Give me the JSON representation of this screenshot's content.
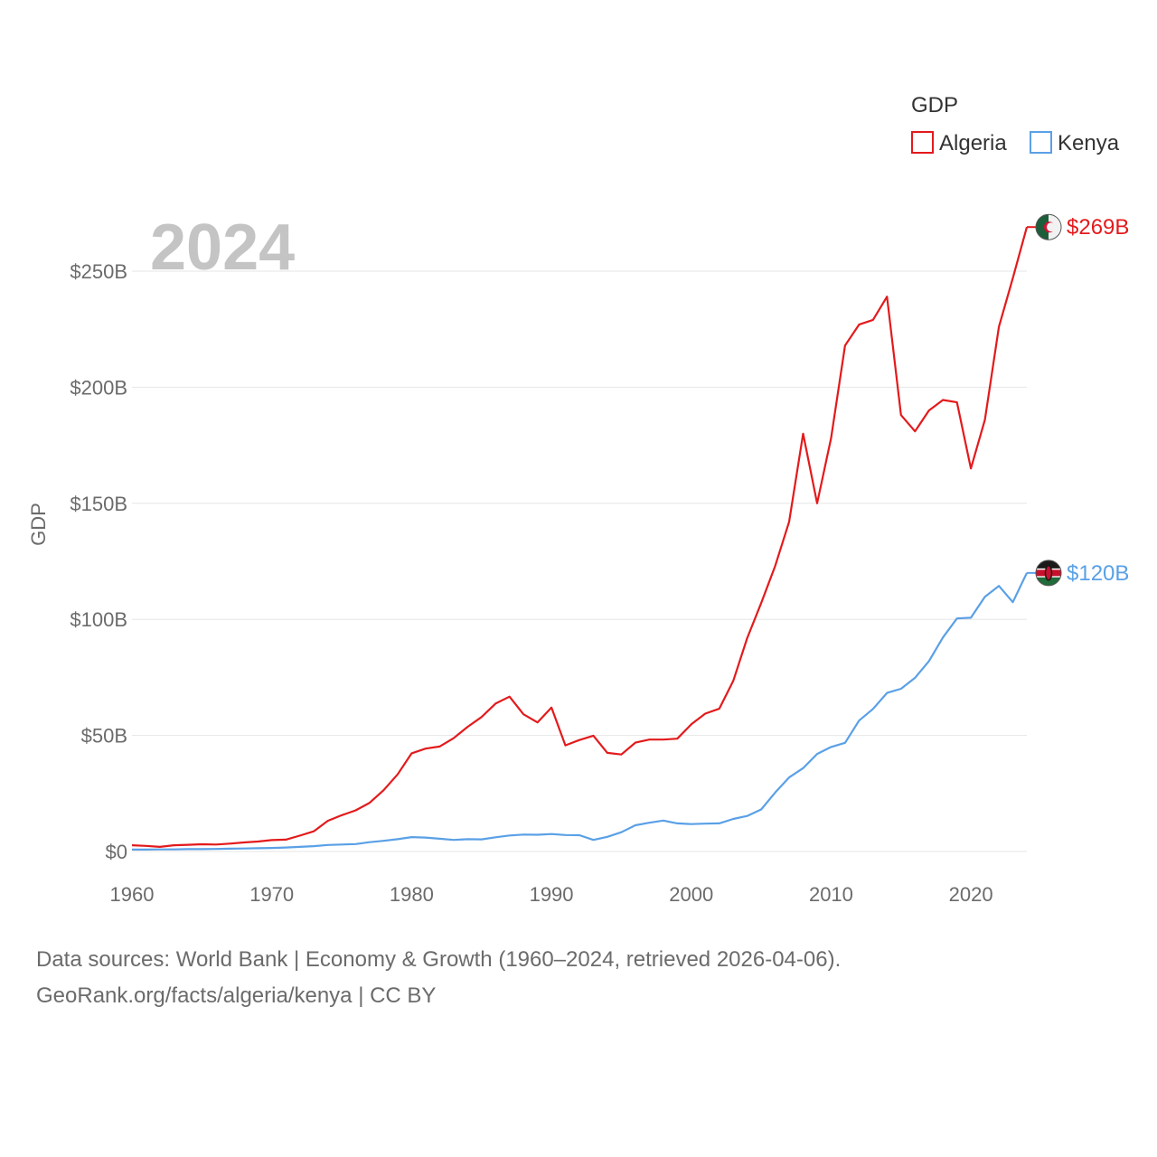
{
  "chart_data": {
    "type": "line",
    "ylabel": "GDP",
    "ylim": [
      0,
      270
    ],
    "y_ticks": [
      {
        "value": 0,
        "label": "$0"
      },
      {
        "value": 50,
        "label": "$50B"
      },
      {
        "value": 100,
        "label": "$100B"
      },
      {
        "value": 150,
        "label": "$150B"
      },
      {
        "value": 200,
        "label": "$200B"
      },
      {
        "value": 250,
        "label": "$250B"
      }
    ],
    "xlim": [
      1960,
      2024
    ],
    "x_ticks": [
      1960,
      1970,
      1980,
      1990,
      2000,
      2010,
      2020
    ],
    "current_year": "2024",
    "legend": {
      "title": "GDP",
      "position": "top-right"
    },
    "series": [
      {
        "name": "Algeria",
        "color": "#e31a1c",
        "end_label": "$269B",
        "flag_icon": "algeria-flag-icon",
        "x": [
          1960,
          1961,
          1962,
          1963,
          1964,
          1965,
          1966,
          1967,
          1968,
          1969,
          1970,
          1971,
          1972,
          1973,
          1974,
          1975,
          1976,
          1977,
          1978,
          1979,
          1980,
          1981,
          1982,
          1983,
          1984,
          1985,
          1986,
          1987,
          1988,
          1989,
          1990,
          1991,
          1992,
          1993,
          1994,
          1995,
          1996,
          1997,
          1998,
          1999,
          2000,
          2001,
          2002,
          2003,
          2004,
          2005,
          2006,
          2007,
          2008,
          2009,
          2010,
          2011,
          2012,
          2013,
          2014,
          2015,
          2016,
          2017,
          2018,
          2019,
          2020,
          2021,
          2022,
          2023,
          2024
        ],
        "values": [
          2.7,
          2.4,
          2.0,
          2.7,
          2.9,
          3.1,
          3.0,
          3.4,
          3.9,
          4.3,
          4.9,
          5.1,
          6.8,
          8.7,
          13.2,
          15.6,
          17.7,
          21.0,
          26.4,
          33.2,
          42.3,
          44.3,
          45.2,
          48.8,
          53.7,
          57.9,
          63.7,
          66.7,
          59.1,
          55.6,
          62.0,
          45.7,
          48.0,
          49.9,
          42.5,
          41.8,
          46.9,
          48.2,
          48.2,
          48.6,
          54.8,
          59.4,
          61.5,
          73.5,
          91.9,
          107.0,
          123.0,
          142.0,
          180.0,
          150.0,
          178.0,
          218.0,
          227.0,
          229.0,
          239.0,
          188.0,
          181.0,
          190.0,
          194.5,
          193.5,
          165.0,
          186.0,
          226.0,
          247.0,
          269.0
        ]
      },
      {
        "name": "Kenya",
        "color": "#5aa0e6",
        "end_label": "$120B",
        "flag_icon": "kenya-flag-icon",
        "x": [
          1960,
          1961,
          1962,
          1963,
          1964,
          1965,
          1966,
          1967,
          1968,
          1969,
          1970,
          1971,
          1972,
          1973,
          1974,
          1975,
          1976,
          1977,
          1978,
          1979,
          1980,
          1981,
          1982,
          1983,
          1984,
          1985,
          1986,
          1987,
          1988,
          1989,
          1990,
          1991,
          1992,
          1993,
          1994,
          1995,
          1996,
          1997,
          1998,
          1999,
          2000,
          2001,
          2002,
          2003,
          2004,
          2005,
          2006,
          2007,
          2008,
          2009,
          2010,
          2011,
          2012,
          2013,
          2014,
          2015,
          2016,
          2017,
          2018,
          2019,
          2020,
          2021,
          2022,
          2023,
          2024
        ],
        "values": [
          0.8,
          0.8,
          0.9,
          0.9,
          1.0,
          1.0,
          1.1,
          1.2,
          1.3,
          1.4,
          1.5,
          1.7,
          2.0,
          2.3,
          2.8,
          3.0,
          3.2,
          4.0,
          4.6,
          5.3,
          6.2,
          6.0,
          5.5,
          5.0,
          5.3,
          5.2,
          6.1,
          6.9,
          7.3,
          7.2,
          7.5,
          7.1,
          7.0,
          5.0,
          6.3,
          8.3,
          11.3,
          12.4,
          13.3,
          12.1,
          11.8,
          12.0,
          12.1,
          14.0,
          15.3,
          18.1,
          25.4,
          31.9,
          35.9,
          42.0,
          45.0,
          46.8,
          56.4,
          61.4,
          68.3,
          70.1,
          74.8,
          82.0,
          92.2,
          100.4,
          100.7,
          109.7,
          114.4,
          107.4,
          120.0
        ]
      }
    ]
  },
  "footer": {
    "line1": "Data sources: World Bank | Economy & Growth (1960–2024, retrieved 2026-04-06).",
    "line2": "GeoRank.org/facts/algeria/kenya | CC BY"
  }
}
